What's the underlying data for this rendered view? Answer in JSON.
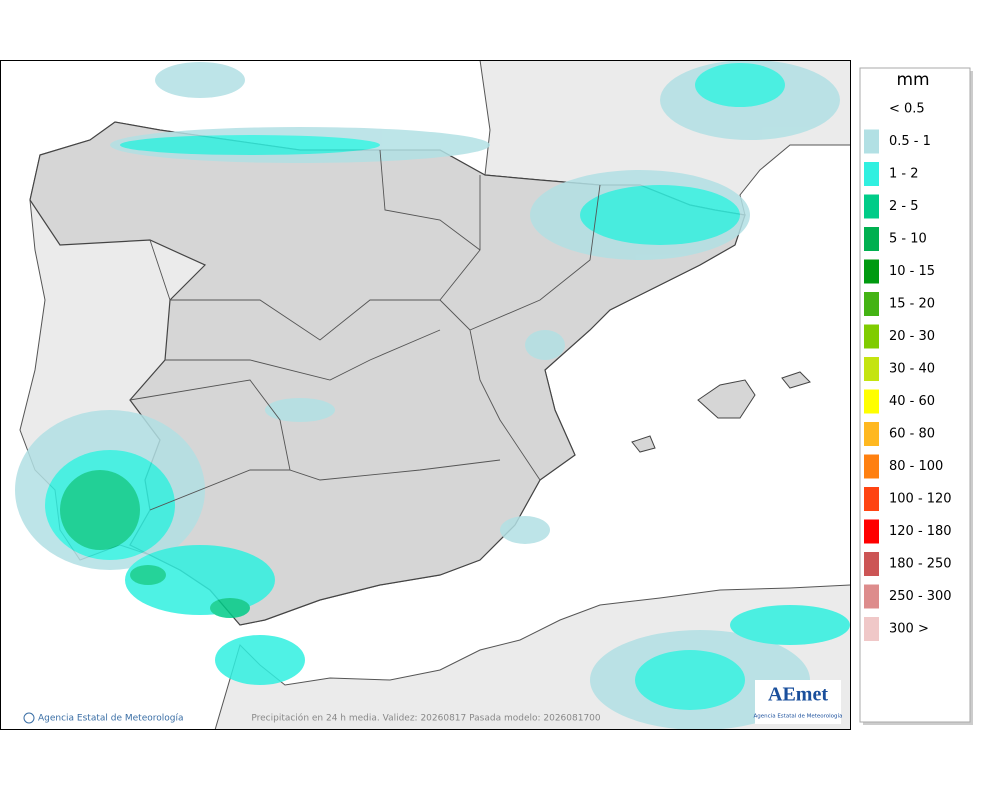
{
  "map": {
    "footer_left": "Agencia Estatal de Meteorología",
    "footer_center": "Precipitación en 24 h media. Validez: 20260817 Pasada modelo: 2026081700",
    "logo": {
      "text": "AEmet",
      "subtitle": "Agencia Estatal de Meteorología"
    }
  },
  "legend": {
    "title": "mm",
    "items": [
      {
        "label": "< 0.5",
        "color": null
      },
      {
        "label": "0.5 - 1",
        "color": "#b2e0e4"
      },
      {
        "label": "1 - 2",
        "color": "#30f0e0"
      },
      {
        "label": "2 - 5",
        "color": "#00cc88"
      },
      {
        "label": "5 - 10",
        "color": "#00b050"
      },
      {
        "label": "10 - 15",
        "color": "#009a10"
      },
      {
        "label": "15 - 20",
        "color": "#44b314"
      },
      {
        "label": "20 - 30",
        "color": "#80cc00"
      },
      {
        "label": "30 - 40",
        "color": "#c4e410"
      },
      {
        "label": "40 - 60",
        "color": "#ffff00"
      },
      {
        "label": "60 - 80",
        "color": "#ffb820"
      },
      {
        "label": "80 - 100",
        "color": "#ff8010"
      },
      {
        "label": "100 - 120",
        "color": "#ff4412"
      },
      {
        "label": "120 - 180",
        "color": "#ff0000"
      },
      {
        "label": "180 - 250",
        "color": "#cc5555"
      },
      {
        "label": "250 - 300",
        "color": "#dd8c8c"
      },
      {
        "label": "300 >",
        "color": "#f0c8c8"
      }
    ]
  }
}
